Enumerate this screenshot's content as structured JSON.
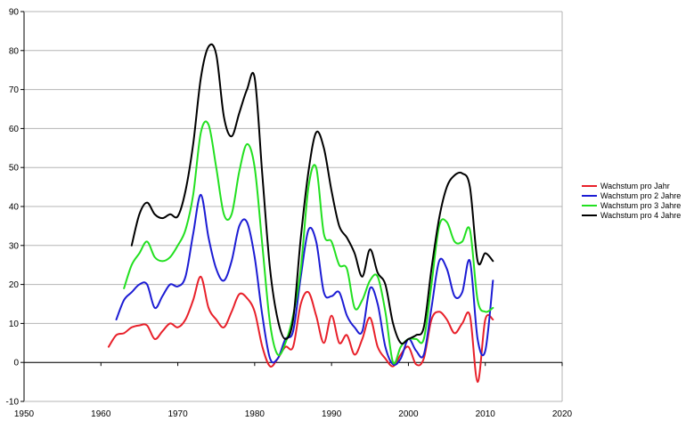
{
  "chart_data": {
    "type": "line",
    "title": "",
    "xlabel": "",
    "ylabel": "",
    "xlim": [
      1950,
      2020
    ],
    "ylim": [
      -10,
      90
    ],
    "x_ticks": [
      1950,
      1960,
      1970,
      1980,
      1990,
      2000,
      2010,
      2020
    ],
    "y_ticks": [
      -10,
      0,
      10,
      20,
      30,
      40,
      50,
      60,
      70,
      80,
      90
    ],
    "grid": "horizontal",
    "legend_position": "right",
    "series": [
      {
        "name": "Wachstum pro Jahr",
        "color": "#e8202a",
        "points": [
          [
            1961,
            4
          ],
          [
            1962,
            7
          ],
          [
            1963,
            7.5
          ],
          [
            1964,
            9
          ],
          [
            1965,
            9.5
          ],
          [
            1966,
            9.5
          ],
          [
            1967,
            6
          ],
          [
            1968,
            8
          ],
          [
            1969,
            10
          ],
          [
            1970,
            9
          ],
          [
            1971,
            11
          ],
          [
            1972,
            16
          ],
          [
            1973,
            22
          ],
          [
            1974,
            14
          ],
          [
            1975,
            11
          ],
          [
            1976,
            9
          ],
          [
            1977,
            13
          ],
          [
            1978,
            17.5
          ],
          [
            1979,
            16.5
          ],
          [
            1980,
            13
          ],
          [
            1981,
            4
          ],
          [
            1982,
            -1
          ],
          [
            1983,
            1
          ],
          [
            1984,
            4
          ],
          [
            1985,
            4
          ],
          [
            1986,
            15
          ],
          [
            1987,
            18
          ],
          [
            1988,
            12
          ],
          [
            1989,
            5
          ],
          [
            1990,
            12
          ],
          [
            1991,
            5
          ],
          [
            1992,
            7
          ],
          [
            1993,
            2
          ],
          [
            1994,
            6
          ],
          [
            1995,
            11.5
          ],
          [
            1996,
            4
          ],
          [
            1997,
            1
          ],
          [
            1998,
            -1
          ],
          [
            1999,
            2
          ],
          [
            2000,
            4
          ],
          [
            2001,
            -0.5
          ],
          [
            2002,
            1
          ],
          [
            2003,
            11
          ],
          [
            2004,
            13
          ],
          [
            2005,
            11
          ],
          [
            2006,
            7.5
          ],
          [
            2007,
            10
          ],
          [
            2008,
            12
          ],
          [
            2009,
            -5
          ],
          [
            2010,
            11
          ],
          [
            2011,
            11
          ]
        ]
      },
      {
        "name": "Wachstum pro 2 Jahre",
        "color": "#1c1cd4",
        "points": [
          [
            1962,
            11
          ],
          [
            1963,
            16
          ],
          [
            1964,
            18
          ],
          [
            1965,
            20
          ],
          [
            1966,
            20
          ],
          [
            1967,
            14
          ],
          [
            1968,
            17
          ],
          [
            1969,
            20
          ],
          [
            1970,
            19.5
          ],
          [
            1971,
            22
          ],
          [
            1972,
            33
          ],
          [
            1973,
            43
          ],
          [
            1974,
            32
          ],
          [
            1975,
            24
          ],
          [
            1976,
            21
          ],
          [
            1977,
            26
          ],
          [
            1978,
            35
          ],
          [
            1979,
            36
          ],
          [
            1980,
            27
          ],
          [
            1981,
            12
          ],
          [
            1982,
            1
          ],
          [
            1983,
            1
          ],
          [
            1984,
            6
          ],
          [
            1985,
            8
          ],
          [
            1986,
            22
          ],
          [
            1987,
            34
          ],
          [
            1988,
            31
          ],
          [
            1989,
            18
          ],
          [
            1990,
            17
          ],
          [
            1991,
            18
          ],
          [
            1992,
            12
          ],
          [
            1993,
            9
          ],
          [
            1994,
            8
          ],
          [
            1995,
            19
          ],
          [
            1996,
            15
          ],
          [
            1997,
            4
          ],
          [
            1998,
            -0.5
          ],
          [
            1999,
            1
          ],
          [
            2000,
            6
          ],
          [
            2001,
            3
          ],
          [
            2002,
            2
          ],
          [
            2003,
            14
          ],
          [
            2004,
            26
          ],
          [
            2005,
            24
          ],
          [
            2006,
            17
          ],
          [
            2007,
            18
          ],
          [
            2008,
            26
          ],
          [
            2009,
            6
          ],
          [
            2010,
            3
          ],
          [
            2011,
            21
          ]
        ]
      },
      {
        "name": "Wachstum pro 3 Jahre",
        "color": "#22e020",
        "points": [
          [
            1963,
            19
          ],
          [
            1964,
            25
          ],
          [
            1965,
            28
          ],
          [
            1966,
            31
          ],
          [
            1967,
            27
          ],
          [
            1968,
            26
          ],
          [
            1969,
            27
          ],
          [
            1970,
            30
          ],
          [
            1971,
            34
          ],
          [
            1972,
            43
          ],
          [
            1973,
            59
          ],
          [
            1974,
            61
          ],
          [
            1975,
            50
          ],
          [
            1976,
            38
          ],
          [
            1977,
            38
          ],
          [
            1978,
            49
          ],
          [
            1979,
            56
          ],
          [
            1980,
            50
          ],
          [
            1981,
            30
          ],
          [
            1982,
            10
          ],
          [
            1983,
            2
          ],
          [
            1984,
            5
          ],
          [
            1985,
            12
          ],
          [
            1986,
            24
          ],
          [
            1987,
            45
          ],
          [
            1988,
            50
          ],
          [
            1989,
            33
          ],
          [
            1990,
            31
          ],
          [
            1991,
            25
          ],
          [
            1992,
            24
          ],
          [
            1993,
            14
          ],
          [
            1994,
            16
          ],
          [
            1995,
            21
          ],
          [
            1996,
            22
          ],
          [
            1997,
            13
          ],
          [
            1998,
            0
          ],
          [
            1999,
            4
          ],
          [
            2000,
            6
          ],
          [
            2001,
            6
          ],
          [
            2002,
            6
          ],
          [
            2003,
            20
          ],
          [
            2004,
            35
          ],
          [
            2005,
            36
          ],
          [
            2006,
            31
          ],
          [
            2007,
            31
          ],
          [
            2008,
            34
          ],
          [
            2009,
            16
          ],
          [
            2010,
            13
          ],
          [
            2011,
            14
          ]
        ]
      },
      {
        "name": "Wachstum pro 4 Jahre",
        "color": "#000000",
        "points": [
          [
            1964,
            30
          ],
          [
            1965,
            38
          ],
          [
            1966,
            41
          ],
          [
            1967,
            38
          ],
          [
            1968,
            37
          ],
          [
            1969,
            38
          ],
          [
            1970,
            37.5
          ],
          [
            1971,
            44
          ],
          [
            1972,
            56
          ],
          [
            1973,
            73
          ],
          [
            1974,
            81
          ],
          [
            1975,
            79
          ],
          [
            1976,
            63
          ],
          [
            1977,
            58
          ],
          [
            1978,
            64
          ],
          [
            1979,
            70
          ],
          [
            1980,
            73
          ],
          [
            1981,
            48
          ],
          [
            1982,
            24
          ],
          [
            1983,
            11
          ],
          [
            1984,
            6
          ],
          [
            1985,
            11
          ],
          [
            1986,
            32
          ],
          [
            1987,
            49
          ],
          [
            1988,
            59
          ],
          [
            1989,
            55
          ],
          [
            1990,
            44
          ],
          [
            1991,
            35
          ],
          [
            1992,
            32
          ],
          [
            1993,
            28
          ],
          [
            1994,
            22
          ],
          [
            1995,
            29
          ],
          [
            1996,
            23
          ],
          [
            1997,
            20
          ],
          [
            1998,
            10
          ],
          [
            1999,
            5
          ],
          [
            2000,
            6
          ],
          [
            2001,
            7
          ],
          [
            2002,
            9
          ],
          [
            2003,
            24
          ],
          [
            2004,
            37
          ],
          [
            2005,
            45
          ],
          [
            2006,
            48
          ],
          [
            2007,
            48.5
          ],
          [
            2008,
            45
          ],
          [
            2009,
            26
          ],
          [
            2010,
            28
          ],
          [
            2011,
            26
          ]
        ]
      }
    ]
  }
}
